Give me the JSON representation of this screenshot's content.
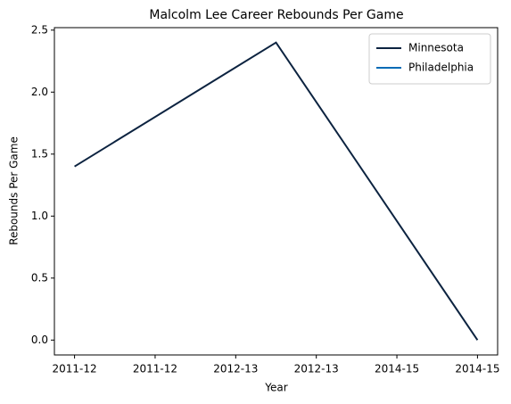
{
  "chart_data": {
    "type": "line",
    "title": "Malcolm Lee  Career Rebounds Per Game",
    "xlabel": "Year",
    "ylabel": "Rebounds Per Game",
    "x": [
      0,
      1,
      2
    ],
    "series": [
      {
        "name": "Minnesota",
        "color": "#0c2340",
        "values": [
          1.4,
          2.4,
          0.0
        ]
      },
      {
        "name": "Philadelphia",
        "color": "#006bb6",
        "values": [
          null,
          null,
          0.0
        ]
      }
    ],
    "xlim": [
      -0.1,
      2.1
    ],
    "xticks": [
      {
        "value": 0,
        "label": "2011-12"
      },
      {
        "value": 0.4,
        "label": "2011-12"
      },
      {
        "value": 0.8,
        "label": "2012-13"
      },
      {
        "value": 1.2,
        "label": "2012-13"
      },
      {
        "value": 1.6,
        "label": "2014-15"
      },
      {
        "value": 2.0,
        "label": "2014-15"
      }
    ],
    "ylim": [
      -0.12,
      2.52
    ],
    "yticks": [
      {
        "value": 0,
        "label": "0.0"
      },
      {
        "value": 0.5,
        "label": "0.5"
      },
      {
        "value": 1,
        "label": "1.0"
      },
      {
        "value": 1.5,
        "label": "1.5"
      },
      {
        "value": 2,
        "label": "2.0"
      },
      {
        "value": 2.5,
        "label": "2.5"
      }
    ],
    "legend": "upper right",
    "grid": false
  }
}
